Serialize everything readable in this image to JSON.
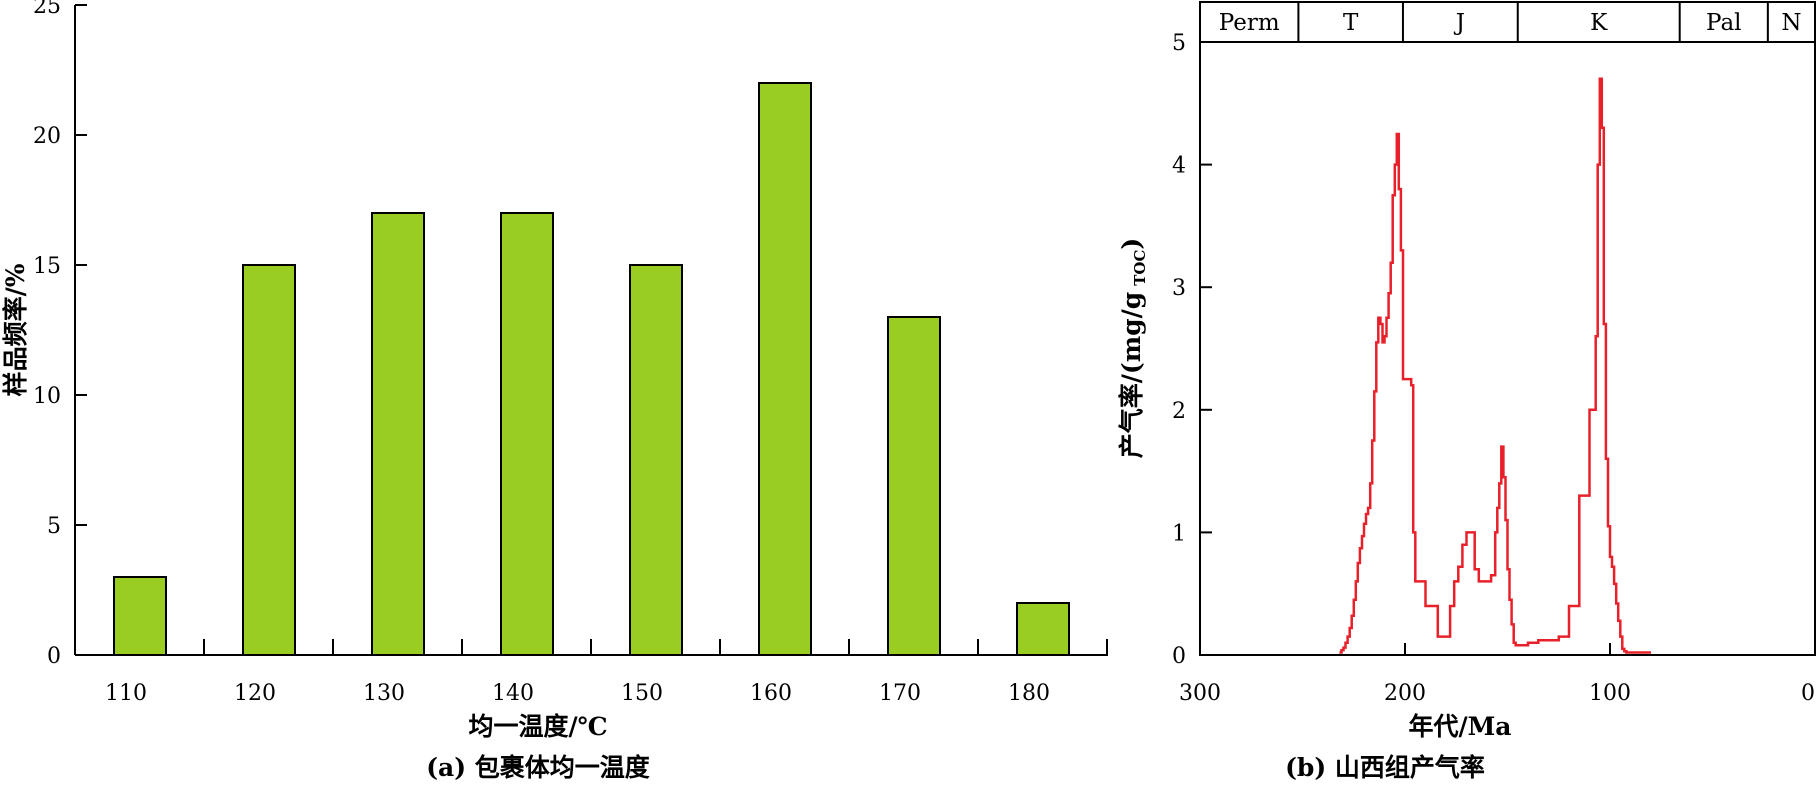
{
  "figure": {
    "caption_a": "(a) 包裹体均一温度",
    "caption_b": "(b) 山西组产气率"
  },
  "colors": {
    "bar_fill": "#9acd22",
    "bar_stroke": "#000000",
    "line": "#e8202a",
    "axis": "#000000"
  },
  "chart_data": [
    {
      "type": "bar",
      "categories": [
        "110",
        "120",
        "130",
        "140",
        "150",
        "160",
        "170",
        "180"
      ],
      "values": [
        3,
        15,
        17,
        17,
        15,
        22,
        13,
        2
      ],
      "xlabel": "均一温度/℃",
      "ylabel": "样品频率/%",
      "ylim": [
        0,
        25
      ],
      "yticks": [
        0,
        5,
        10,
        15,
        20,
        25
      ],
      "grid": false
    },
    {
      "type": "line",
      "xlabel": "年代/Ma",
      "ylabel": "产气率/(mg/g",
      "ylabel_sub": "TOC",
      "ylabel_close": ")",
      "xlim": [
        300,
        0
      ],
      "ylim": [
        0,
        5
      ],
      "xticks": [
        300,
        200,
        100,
        0
      ],
      "yticks": [
        0,
        1,
        2,
        3,
        4,
        5
      ],
      "grid": false,
      "periods": [
        {
          "label": "Perm",
          "start": 300,
          "end": 252
        },
        {
          "label": "T",
          "start": 252,
          "end": 201
        },
        {
          "label": "J",
          "start": 201,
          "end": 145
        },
        {
          "label": "K",
          "start": 145,
          "end": 66
        },
        {
          "label": "Pal",
          "start": 66,
          "end": 23
        },
        {
          "label": "N",
          "start": 23,
          "end": 0
        }
      ],
      "series": [
        {
          "x": [
            232,
            231,
            230,
            229,
            228,
            227,
            226,
            225,
            224,
            223,
            222,
            221,
            220,
            219,
            218,
            217,
            216,
            215,
            214,
            213,
            212,
            211,
            210,
            209,
            208,
            207,
            206,
            205,
            204,
            203,
            202,
            201,
            200,
            199,
            198,
            197,
            196,
            195,
            194,
            192,
            190,
            188,
            186,
            184,
            182,
            180,
            178,
            176,
            174,
            172,
            170,
            168,
            166,
            164,
            162,
            160,
            158,
            156,
            155,
            154,
            153,
            152,
            151,
            150,
            149,
            148,
            147,
            146,
            145,
            144,
            143,
            142,
            140,
            135,
            130,
            125,
            120,
            115,
            110,
            107,
            106,
            105,
            104,
            103,
            102,
            101,
            100,
            99,
            98,
            97,
            96,
            95,
            94,
            93,
            92,
            91,
            90,
            88,
            86,
            84,
            82,
            80
          ],
          "y": [
            0.02,
            0.04,
            0.06,
            0.1,
            0.15,
            0.22,
            0.32,
            0.45,
            0.6,
            0.75,
            0.87,
            0.97,
            1.07,
            1.15,
            1.2,
            1.4,
            1.75,
            2.15,
            2.55,
            2.75,
            2.7,
            2.55,
            2.6,
            2.75,
            2.95,
            3.2,
            3.75,
            4.0,
            4.25,
            3.8,
            3.3,
            2.25,
            2.25,
            2.25,
            2.25,
            2.2,
            1.0,
            0.6,
            0.6,
            0.6,
            0.4,
            0.4,
            0.4,
            0.15,
            0.15,
            0.15,
            0.4,
            0.6,
            0.72,
            0.9,
            1.0,
            1.0,
            0.7,
            0.6,
            0.6,
            0.6,
            0.65,
            1.0,
            1.2,
            1.4,
            1.7,
            1.45,
            1.1,
            0.7,
            0.45,
            0.25,
            0.1,
            0.08,
            0.08,
            0.08,
            0.08,
            0.08,
            0.1,
            0.12,
            0.12,
            0.15,
            0.4,
            1.3,
            2.0,
            2.6,
            4.0,
            4.7,
            4.3,
            2.7,
            1.6,
            1.05,
            0.8,
            0.72,
            0.58,
            0.42,
            0.28,
            0.15,
            0.05,
            0.03,
            0.02,
            0.02,
            0.02,
            0.02,
            0.02,
            0.02,
            0.02,
            0.02
          ]
        }
      ]
    }
  ]
}
